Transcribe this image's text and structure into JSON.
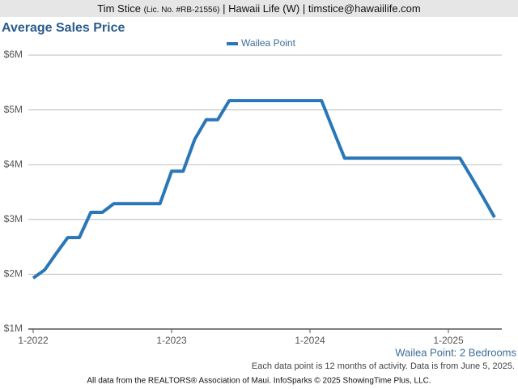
{
  "header": {
    "name": "Tim Stice",
    "license": "(Lic. No. #RB-21556)",
    "rest": "| Hawaii Life (W) | timstice@hawaiilife.com"
  },
  "chart_data": {
    "type": "line",
    "title": "Average Sales Price",
    "categories": [
      "1-2022",
      null,
      null,
      null,
      null,
      null,
      null,
      null,
      null,
      null,
      null,
      null,
      "1-2023",
      null,
      null,
      null,
      null,
      null,
      null,
      null,
      null,
      null,
      null,
      null,
      "1-2024",
      null,
      null,
      null,
      null,
      null,
      null,
      null,
      null,
      null,
      null,
      null,
      "1-2025",
      null,
      null,
      null,
      null
    ],
    "series": [
      {
        "name": "Wailea Point",
        "color": "#2a77b8",
        "values": [
          1930000,
          2080000,
          2380000,
          2670000,
          2670000,
          3130000,
          3130000,
          3290000,
          3290000,
          3290000,
          3290000,
          3290000,
          3880000,
          3880000,
          4460000,
          4820000,
          4820000,
          5170000,
          5170000,
          5170000,
          5170000,
          5170000,
          5170000,
          5170000,
          5170000,
          5170000,
          4640000,
          4120000,
          4120000,
          4120000,
          4120000,
          4120000,
          4120000,
          4120000,
          4120000,
          4120000,
          4120000,
          4120000,
          3770000,
          3410000,
          3040000
        ]
      }
    ],
    "ylim": [
      1000000,
      6000000
    ],
    "yticks": [
      {
        "value": 1000000,
        "label": "$1M"
      },
      {
        "value": 2000000,
        "label": "$2M"
      },
      {
        "value": 3000000,
        "label": "$3M"
      },
      {
        "value": 4000000,
        "label": "$4M"
      },
      {
        "value": 5000000,
        "label": "$5M"
      },
      {
        "value": 6000000,
        "label": "$6M"
      }
    ],
    "grid": true,
    "subtitle": "Wailea Point: 2 Bedrooms",
    "note": "Each data point is 12 months of activity. Data is from June 5, 2025."
  },
  "footer": "All data from the REALTORS® Association of Maui. InfoSparks © 2025 ShowingTime Plus, LLC."
}
